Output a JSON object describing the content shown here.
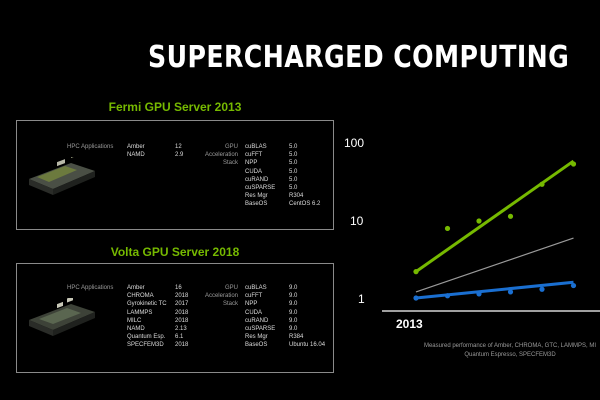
{
  "title": "SUPERCHARGED COMPUTING",
  "panels": [
    {
      "title": "Fermi GPU Server 2013",
      "hpc_label": "HPC Applications",
      "apps": [
        {
          "name": "Amber",
          "value": "12"
        },
        {
          "name": "NAMD",
          "value": "2.9"
        }
      ],
      "stack_labels": [
        "GPU",
        "Acceleration",
        "Stack"
      ],
      "stack": [
        {
          "name": "cuBLAS",
          "value": "5.0"
        },
        {
          "name": "cuFFT",
          "value": "5.0"
        },
        {
          "name": "NPP",
          "value": "5.0"
        },
        {
          "name": "CUDA",
          "value": "5.0"
        },
        {
          "name": "cuRAND",
          "value": "5.0"
        },
        {
          "name": "cuSPARSE",
          "value": "5.0"
        },
        {
          "name": "Res Mgr",
          "value": "R304"
        },
        {
          "name": "BaseOS",
          "value": "CentOS 6.2"
        }
      ]
    },
    {
      "title": "Volta GPU Server 2018",
      "hpc_label": "HPC Applications",
      "apps": [
        {
          "name": "Amber",
          "value": "16"
        },
        {
          "name": "CHROMA",
          "value": "2018"
        },
        {
          "name": "Gyrokinetic TC",
          "value": "2017"
        },
        {
          "name": "LAMMPS",
          "value": "2018"
        },
        {
          "name": "MILC",
          "value": "2018"
        },
        {
          "name": "NAMD",
          "value": "2.13"
        },
        {
          "name": "Quantum Esp.",
          "value": "6.1"
        },
        {
          "name": "SPECFEM3D",
          "value": "2018"
        }
      ],
      "stack_labels": [
        "GPU",
        "Acceleration",
        "Stack"
      ],
      "stack": [
        {
          "name": "cuBLAS",
          "value": "9.0"
        },
        {
          "name": "cuFFT",
          "value": "9.0"
        },
        {
          "name": "NPP",
          "value": "9.0"
        },
        {
          "name": "CUDA",
          "value": "9.0"
        },
        {
          "name": "cuRAND",
          "value": "9.0"
        },
        {
          "name": "cuSPARSE",
          "value": "9.0"
        },
        {
          "name": "Res Mgr",
          "value": "R384"
        },
        {
          "name": "BaseOS",
          "value": "Ubuntu 16.04"
        }
      ]
    }
  ],
  "chart_data": {
    "type": "line",
    "yscale": "log",
    "yticks": [
      "100",
      "10",
      "1"
    ],
    "ytick_values": [
      100,
      10,
      1
    ],
    "xticks": [
      "2013"
    ],
    "grid": false,
    "colors": {
      "green": "#76b900",
      "blue": "#1a6fd1",
      "gray": "#9a9a9a"
    },
    "series": [
      {
        "color": "green",
        "trend": [
          [
            2013,
            2.2
          ],
          [
            2018,
            60
          ]
        ],
        "points": [
          [
            2013,
            2.2
          ],
          [
            2014,
            8
          ],
          [
            2015,
            10
          ],
          [
            2016,
            11.5
          ],
          [
            2017,
            30
          ],
          [
            2018,
            55
          ]
        ]
      },
      {
        "color": "gray",
        "trend": [
          [
            2013,
            1.2
          ],
          [
            2018,
            6
          ]
        ],
        "points": []
      },
      {
        "color": "blue",
        "trend": [
          [
            2013,
            1.0
          ],
          [
            2018,
            1.6
          ]
        ],
        "points": [
          [
            2013,
            1.0
          ],
          [
            2014,
            1.07
          ],
          [
            2015,
            1.13
          ],
          [
            2016,
            1.2
          ],
          [
            2017,
            1.3
          ],
          [
            2018,
            1.45
          ]
        ]
      }
    ]
  },
  "footnote": [
    "Measured performance of Amber, CHROMA, GTC, LAMMPS, MI",
    "Quantum Espresso, SPECFEM3D"
  ]
}
